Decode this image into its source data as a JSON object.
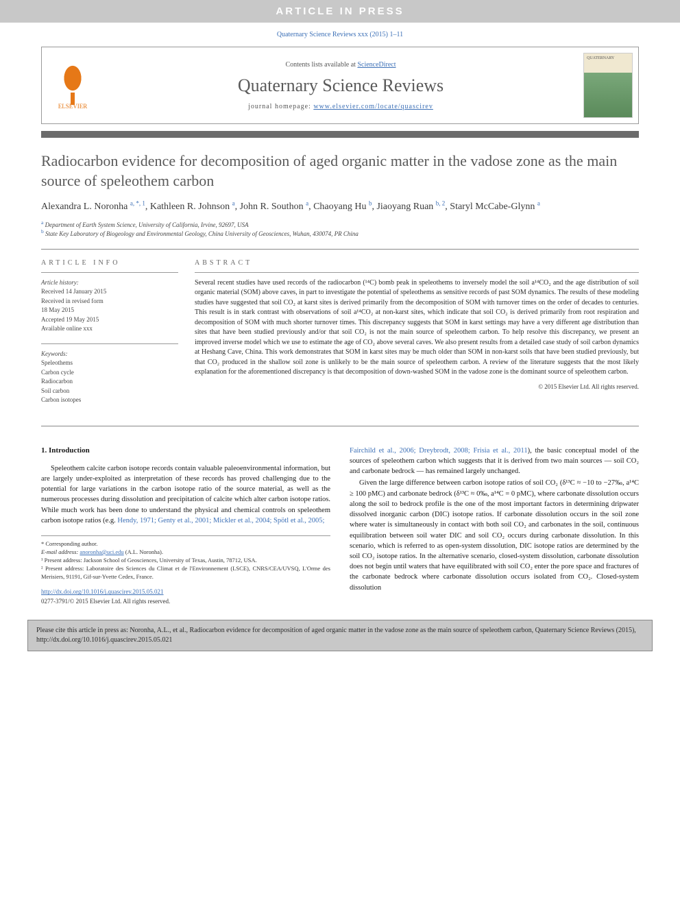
{
  "banner": "ARTICLE IN PRESS",
  "journal_ref": "Quaternary Science Reviews xxx (2015) 1–11",
  "header": {
    "contents_prefix": "Contents lists available at ",
    "contents_link": "ScienceDirect",
    "journal_name": "Quaternary Science Reviews",
    "homepage_prefix": "journal homepage: ",
    "homepage_url": "www.elsevier.com/locate/quascirev",
    "elsevier_label": "ELSEVIER"
  },
  "title": "Radiocarbon evidence for decomposition of aged organic matter in the vadose zone as the main source of speleothem carbon",
  "authors_html": "Alexandra L. Noronha <sup>a, *, 1</sup>, Kathleen R. Johnson <sup>a</sup>, John R. Southon <sup>a</sup>, Chaoyang Hu <sup>b</sup>, Jiaoyang Ruan <sup>b, 2</sup>, Staryl McCabe-Glynn <sup>a</sup>",
  "affiliations": {
    "a": "Department of Earth System Science, University of California, Irvine, 92697, USA",
    "b": "State Key Laboratory of Biogeology and Environmental Geology, China University of Geosciences, Wuhan, 430074, PR China"
  },
  "article_info": {
    "heading": "ARTICLE INFO",
    "history_label": "Article history:",
    "received": "Received 14 January 2015",
    "revised1": "Received in revised form",
    "revised2": "18 May 2015",
    "accepted": "Accepted 19 May 2015",
    "available": "Available online xxx",
    "keywords_label": "Keywords:",
    "keywords": [
      "Speleothems",
      "Carbon cycle",
      "Radiocarbon",
      "Soil carbon",
      "Carbon isotopes"
    ]
  },
  "abstract": {
    "heading": "ABSTRACT",
    "text": "Several recent studies have used records of the radiocarbon (¹⁴C) bomb peak in speleothems to inversely model the soil a¹⁴CO₂ and the age distribution of soil organic material (SOM) above caves, in part to investigate the potential of speleothems as sensitive records of past SOM dynamics. The results of these modeling studies have suggested that soil CO₂ at karst sites is derived primarily from the decomposition of SOM with turnover times on the order of decades to centuries. This result is in stark contrast with observations of soil a¹⁴CO₂ at non-karst sites, which indicate that soil CO₂ is derived primarily from root respiration and decomposition of SOM with much shorter turnover times. This discrepancy suggests that SOM in karst settings may have a very different age distribution than sites that have been studied previously and/or that soil CO₂ is not the main source of speleothem carbon. To help resolve this discrepancy, we present an improved inverse model which we use to estimate the age of CO₂ above several caves. We also present results from a detailed case study of soil carbon dynamics at Heshang Cave, China. This work demonstrates that SOM in karst sites may be much older than SOM in non-karst soils that have been studied previously, but that CO₂ produced in the shallow soil zone is unlikely to be the main source of speleothem carbon. A review of the literature suggests that the most likely explanation for the aforementioned discrepancy is that decomposition of down-washed SOM in the vadose zone is the dominant source of speleothem carbon.",
    "copyright": "© 2015 Elsevier Ltd. All rights reserved."
  },
  "body": {
    "section_heading": "1. Introduction",
    "left_p1a": "Speleothem calcite carbon isotope records contain valuable paleoenvironmental information, but are largely under-exploited as interpretation of these records has proved challenging due to the potential for large variations in the carbon isotope ratio of the source material, as well as the numerous processes during dissolution and precipitation of calcite which alter carbon isotope ratios. While much work has been done to understand the physical and chemical controls on speleothem carbon isotope ratios (e.g. ",
    "left_cites": "Hendy, 1971; Genty et al., 2001; Mickler et al., 2004; Spötl et al., 2005;",
    "right_cites": "Fairchild et al., 2006; Dreybrodt, 2008; Frisia et al., 2011",
    "right_p1b": "), the basic conceptual model of the sources of speleothem carbon which suggests that it is derived from two main sources — soil CO₂ and carbonate bedrock — has remained largely unchanged.",
    "right_p2": "Given the large difference between carbon isotope ratios of soil CO₂ (δ¹³C ≈ −10 to −27‰, a¹⁴C ≥ 100 pMC) and carbonate bedrock (δ¹³C ≈ 0‰, a¹⁴C = 0 pMC), where carbonate dissolution occurs along the soil to bedrock profile is the one of the most important factors in determining dripwater dissolved inorganic carbon (DIC) isotope ratios. If carbonate dissolution occurs in the soil zone where water is simultaneously in contact with both soil CO₂ and carbonates in the soil, continuous equilibration between soil water DIC and soil CO₂ occurs during carbonate dissolution. In this scenario, which is referred to as open-system dissolution, DIC isotope ratios are determined by the soil CO₂ isotope ratios. In the alternative scenario, closed-system dissolution, carbonate dissolution does not begin until waters that have equilibrated with soil CO₂ enter the pore space and fractures of the carbonate bedrock where carbonate dissolution occurs isolated from CO₂. Closed-system dissolution"
  },
  "footnotes": {
    "corresponding": "* Corresponding author.",
    "email_label": "E-mail address: ",
    "email": "anoronha@uci.edu",
    "email_suffix": " (A.L. Noronha).",
    "fn1": "¹ Present address: Jackson School of Geosciences, University of Texas, Austin, 78712, USA.",
    "fn2": "² Present address: Laboratoire des Sciences du Climat et de l'Environnement (LSCE), CNRS/CEA/UVSQ, L'Orme des Merisiers, 91191, Gif-sur-Yvette Cedex, France."
  },
  "doi": {
    "url": "http://dx.doi.org/10.1016/j.quascirev.2015.05.021",
    "issn_line": "0277-3791/© 2015 Elsevier Ltd. All rights reserved."
  },
  "citation_box": "Please cite this article in press as: Noronha, A.L., et al., Radiocarbon evidence for decomposition of aged organic matter in the vadose zone as the main source of speleothem carbon, Quaternary Science Reviews (2015), http://dx.doi.org/10.1016/j.quascirev.2015.05.021",
  "colors": {
    "link": "#3b6fb6",
    "banner_bg": "#c8c8c8",
    "rule": "#6b6b6b",
    "elsevier": "#e67817"
  }
}
